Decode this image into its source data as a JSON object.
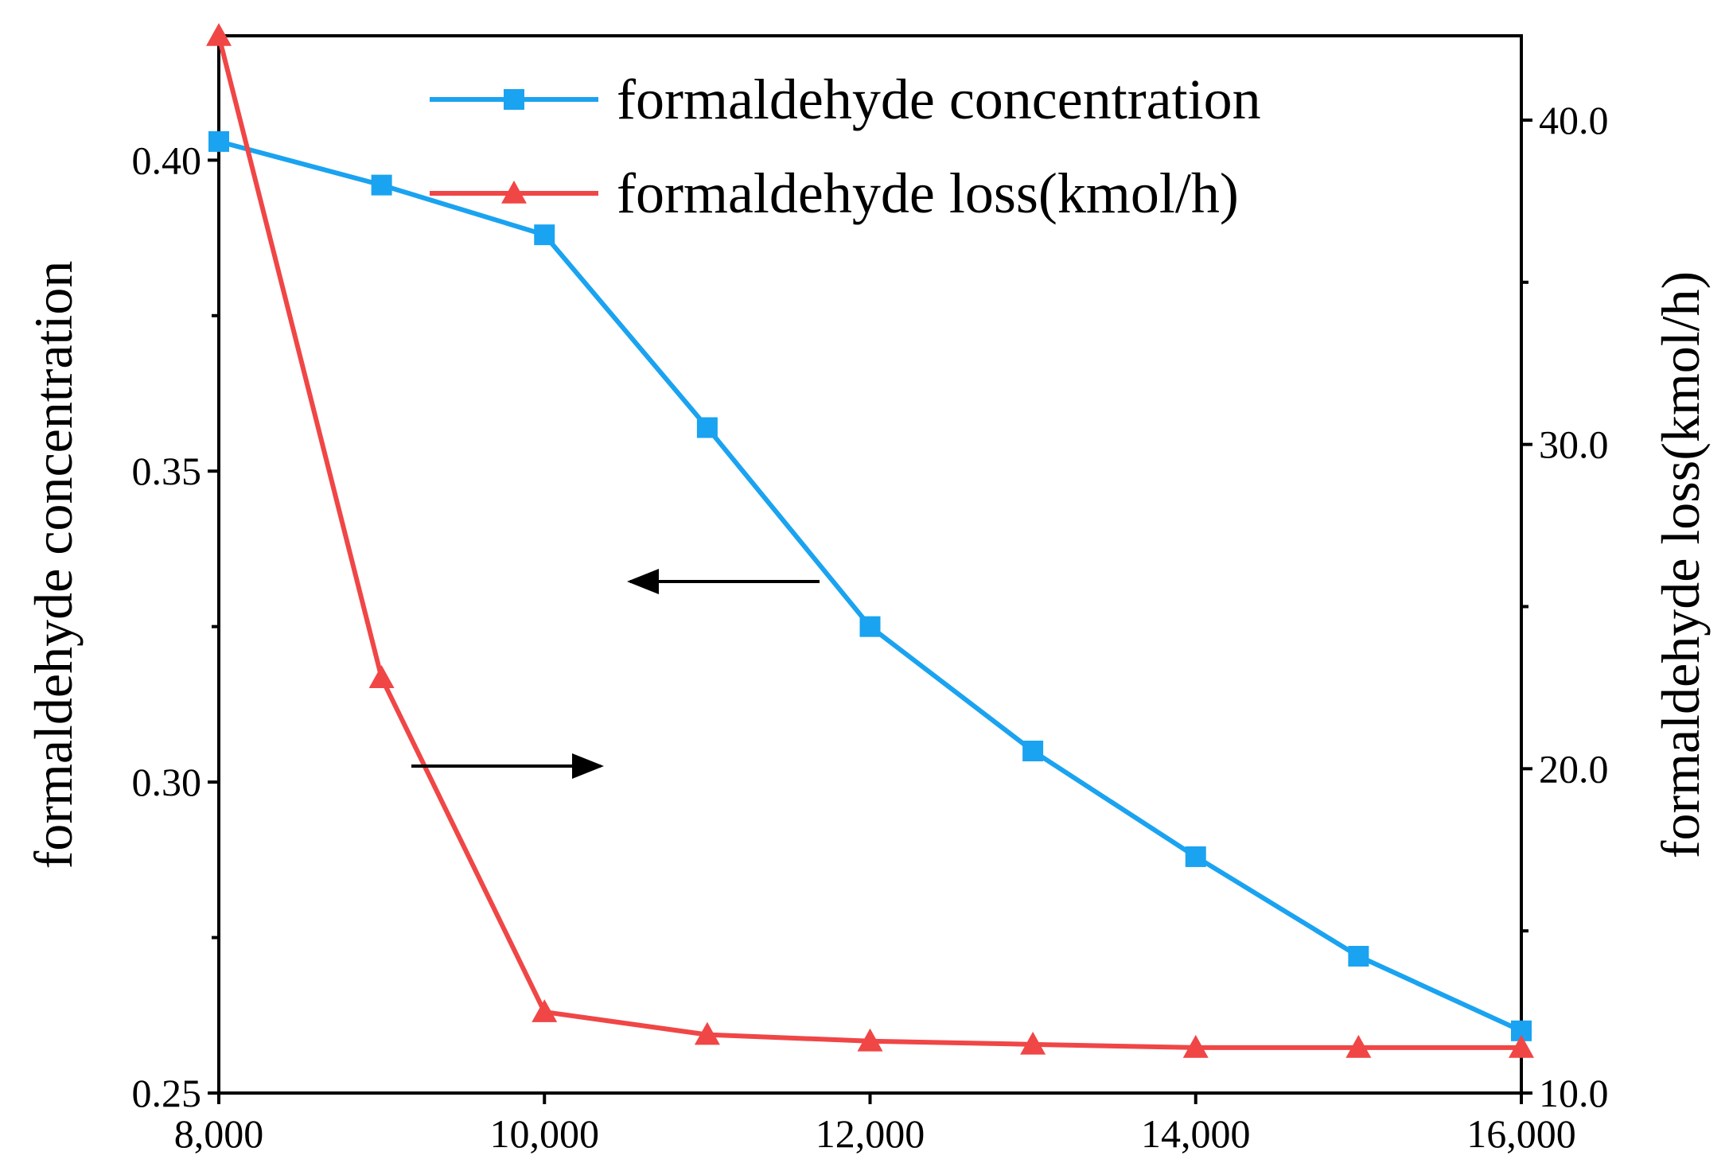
{
  "chart_data": {
    "type": "line",
    "title": "",
    "xlabel": "",
    "ylabel": "formaldehyde concentration",
    "y2label": "formaldehyde loss(kmol/h)",
    "x": [
      8000,
      9000,
      10000,
      11000,
      12000,
      13000,
      14000,
      15000,
      16000
    ],
    "xlim": [
      8000,
      16000
    ],
    "xticks": [
      8000,
      10000,
      12000,
      14000,
      16000
    ],
    "xtick_labels": [
      "8,000",
      "10,000",
      "12,000",
      "14,000",
      "16,000"
    ],
    "ylim": [
      0.25,
      0.42
    ],
    "yticks": [
      0.25,
      0.3,
      0.35,
      0.4
    ],
    "ytick_labels": [
      "0.25",
      "0.30",
      "0.35",
      "0.40"
    ],
    "y2lim": [
      10.0,
      42.6
    ],
    "y2ticks": [
      10.0,
      20.0,
      30.0,
      40.0
    ],
    "y2tick_labels": [
      "10.0",
      "20.0",
      "30.0",
      "40.0"
    ],
    "grid": false,
    "legend_position": "top-right",
    "series": [
      {
        "name": "formaldehyde concentration",
        "axis": "left",
        "color": "#1aa3f0",
        "marker": "square",
        "values": [
          0.403,
          0.396,
          0.388,
          0.357,
          0.325,
          0.305,
          0.288,
          0.272,
          0.26
        ]
      },
      {
        "name": "formaldehyde loss(kmol/h)",
        "axis": "right",
        "color": "#f04646",
        "marker": "triangle",
        "values": [
          42.6,
          22.8,
          12.5,
          11.8,
          11.6,
          11.5,
          11.4,
          11.4,
          11.4
        ]
      }
    ],
    "annotations": [
      {
        "type": "arrow",
        "direction": "left",
        "meaning": "formaldehyde concentration reads on left axis"
      },
      {
        "type": "arrow",
        "direction": "right",
        "meaning": "formaldehyde loss reads on right axis"
      }
    ]
  }
}
